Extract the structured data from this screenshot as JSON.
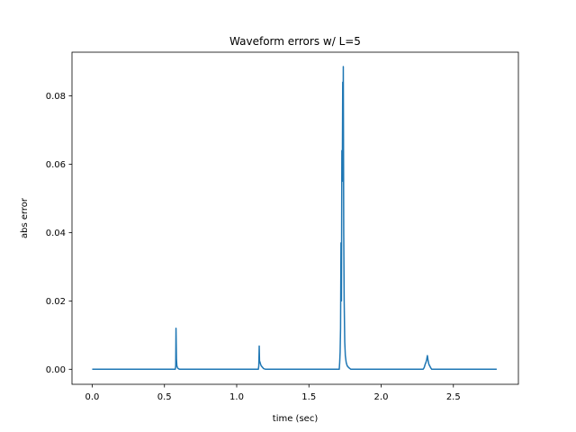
{
  "chart_data": {
    "type": "line",
    "title": "Waveform errors w/ L=5",
    "xlabel": "time (sec)",
    "ylabel": "abs error",
    "xlim": [
      -0.14,
      2.95
    ],
    "ylim": [
      -0.0044,
      0.0928
    ],
    "xticks": [
      0.0,
      0.5,
      1.0,
      1.5,
      2.0,
      2.5
    ],
    "xtick_labels": [
      "0.0",
      "0.5",
      "1.0",
      "1.5",
      "2.0",
      "2.5"
    ],
    "yticks": [
      0.0,
      0.02,
      0.04,
      0.06,
      0.08
    ],
    "ytick_labels": [
      "0.00",
      "0.02",
      "0.04",
      "0.06",
      "0.08"
    ],
    "grid": false,
    "legend": "none",
    "series": [
      {
        "color": "#1f77b4",
        "x": [
          0.0,
          0.575,
          0.578,
          0.58,
          0.583,
          0.586,
          0.59,
          0.595,
          0.6,
          0.605,
          1.15,
          1.153,
          1.156,
          1.158,
          1.162,
          1.166,
          1.17,
          1.178,
          1.186,
          1.2,
          1.71,
          1.713,
          1.716,
          1.719,
          1.722,
          1.725,
          1.728,
          1.731,
          1.734,
          1.736,
          1.738,
          1.741,
          1.744,
          1.748,
          1.752,
          1.758,
          1.765,
          1.775,
          1.79,
          2.29,
          2.298,
          2.305,
          2.31,
          2.315,
          2.32,
          2.325,
          2.33,
          2.336,
          2.342,
          2.35,
          2.8
        ],
        "y": [
          0.0,
          0.0,
          0.001,
          0.012,
          0.003,
          0.001,
          0.0005,
          0.0002,
          0.0001,
          0.0,
          0.0,
          0.001,
          0.0068,
          0.0025,
          0.002,
          0.0014,
          0.001,
          0.0006,
          0.0002,
          0.0,
          0.0,
          0.002,
          0.005,
          0.012,
          0.037,
          0.02,
          0.064,
          0.055,
          0.084,
          0.062,
          0.0886,
          0.04,
          0.02,
          0.008,
          0.004,
          0.002,
          0.001,
          0.0005,
          0.0,
          0.0,
          0.0005,
          0.0015,
          0.002,
          0.0028,
          0.004,
          0.0025,
          0.0015,
          0.001,
          0.0005,
          0.0,
          0.0
        ]
      }
    ]
  }
}
